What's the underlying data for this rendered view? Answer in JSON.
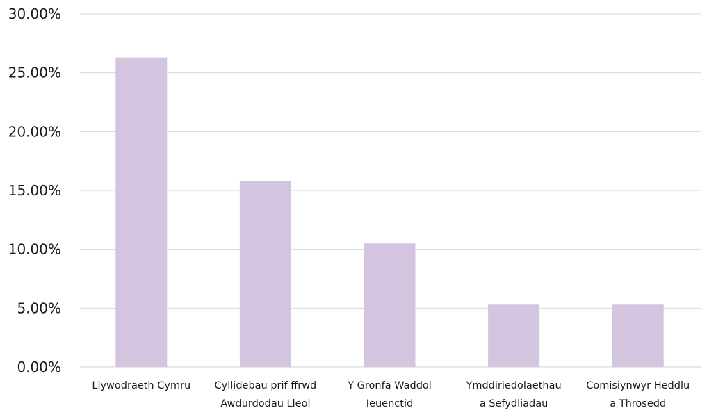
{
  "chart_data": {
    "type": "bar",
    "title": "",
    "xlabel": "",
    "ylabel": "",
    "ylim": [
      0,
      0.3
    ],
    "y_ticks": [
      {
        "value": 0.0,
        "label": "0.00%"
      },
      {
        "value": 0.05,
        "label": "5.00%"
      },
      {
        "value": 0.1,
        "label": "10.00%"
      },
      {
        "value": 0.15,
        "label": "15.00%"
      },
      {
        "value": 0.2,
        "label": "20.00%"
      },
      {
        "value": 0.25,
        "label": "25.00%"
      },
      {
        "value": 0.3,
        "label": "30.00%"
      }
    ],
    "grid": true,
    "categories": [
      [
        "Llywodraeth Cymru"
      ],
      [
        "Cyllidebau prif ffrwd",
        "Awdurdodau Lleol"
      ],
      [
        "Y Gronfa Waddol",
        "Ieuenctid"
      ],
      [
        "Ymddiriedolaethau",
        "a Sefydliadau"
      ],
      [
        "Comisiynwyr Heddlu",
        "a Throsedd"
      ]
    ],
    "values": [
      0.263,
      0.158,
      0.105,
      0.053,
      0.053
    ],
    "bar_color": "#d3c4df"
  }
}
